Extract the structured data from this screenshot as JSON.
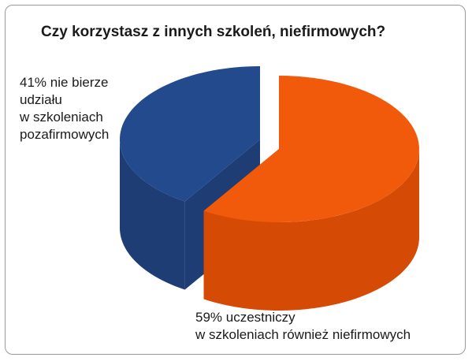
{
  "chart_data": {
    "type": "pie",
    "title": "Czy korzystasz z innych szkoleń, niefirmowych?",
    "slices": [
      {
        "value": 41,
        "label_lines": [
          "41% nie bierze",
          "udziału",
          "w szkoleniach",
          "pozafirmowych"
        ],
        "color": "#234a8c",
        "side_color": "#1d3d74"
      },
      {
        "value": 59,
        "label_lines": [
          "59% uczestniczy",
          "w szkoleniach również niefirmowych"
        ],
        "color": "#f05a0a",
        "side_color": "#d54a05"
      }
    ],
    "style": "3d-exploded",
    "legend": "none"
  }
}
